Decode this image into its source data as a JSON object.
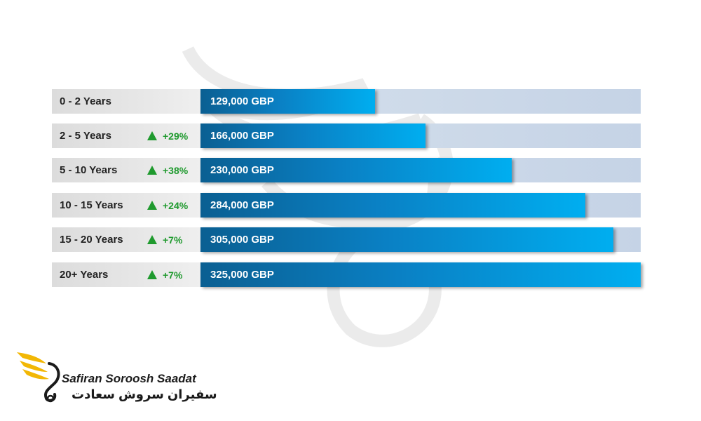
{
  "chart_data": {
    "type": "bar",
    "orientation": "horizontal",
    "categories": [
      "0 - 2 Years",
      "2 - 5 Years",
      "5 - 10 Years",
      "10 - 15 Years",
      "15 - 20 Years",
      "20+ Years"
    ],
    "values": [
      129000,
      166000,
      230000,
      284000,
      305000,
      325000
    ],
    "value_labels": [
      "129,000 GBP",
      "166,000 GBP",
      "230,000 GBP",
      "284,000 GBP",
      "305,000 GBP",
      "325,000 GBP"
    ],
    "changes": [
      "",
      "+29%",
      "+38%",
      "+24%",
      "+7%",
      "+7%"
    ],
    "xlim": [
      0,
      325000
    ],
    "title": "",
    "xlabel": "",
    "ylabel": "",
    "grid": false,
    "colors": {
      "bar_start": "#0a5f92",
      "bar_end": "#00aef0",
      "track": "#c5d3e6",
      "label_bg": "#e0e0e0",
      "change_up": "#1f9a2e"
    }
  },
  "brand": {
    "name_en": "Safiran Soroosh Saadat",
    "name_fa": "سفیران سروش سعادت",
    "logo_icon": "swan-wing-icon",
    "logo_color": "#f2b705"
  }
}
